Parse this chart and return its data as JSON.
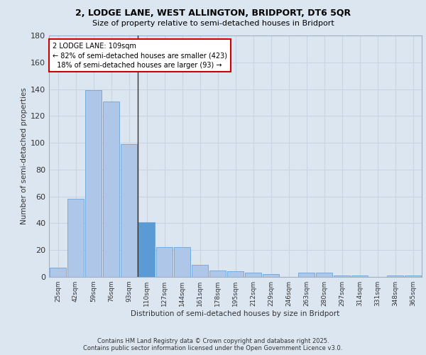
{
  "title_line1": "2, LODGE LANE, WEST ALLINGTON, BRIDPORT, DT6 5QR",
  "title_line2": "Size of property relative to semi-detached houses in Bridport",
  "xlabel": "Distribution of semi-detached houses by size in Bridport",
  "ylabel": "Number of semi-detached properties",
  "categories": [
    "25sqm",
    "42sqm",
    "59sqm",
    "76sqm",
    "93sqm",
    "110sqm",
    "127sqm",
    "144sqm",
    "161sqm",
    "178sqm",
    "195sqm",
    "212sqm",
    "229sqm",
    "246sqm",
    "263sqm",
    "280sqm",
    "297sqm",
    "314sqm",
    "331sqm",
    "348sqm",
    "365sqm"
  ],
  "values": [
    7,
    58,
    139,
    131,
    99,
    41,
    22,
    22,
    9,
    5,
    4,
    3,
    2,
    0,
    3,
    3,
    1,
    1,
    0,
    1,
    1
  ],
  "highlight_index": 5,
  "bar_color_normal": "#aec6e8",
  "bar_color_highlight": "#5b9bd5",
  "bar_edge_color": "#5b9bd5",
  "annotation_text": "2 LODGE LANE: 109sqm\n← 82% of semi-detached houses are smaller (423)\n  18% of semi-detached houses are larger (93) →",
  "annotation_box_color": "#ffffff",
  "annotation_box_edgecolor": "#cc0000",
  "ylim": [
    0,
    180
  ],
  "yticks": [
    0,
    20,
    40,
    60,
    80,
    100,
    120,
    140,
    160,
    180
  ],
  "grid_color": "#c8d4e4",
  "background_color": "#dce6f1",
  "footer_line1": "Contains HM Land Registry data © Crown copyright and database right 2025.",
  "footer_line2": "Contains public sector information licensed under the Open Government Licence v3.0."
}
